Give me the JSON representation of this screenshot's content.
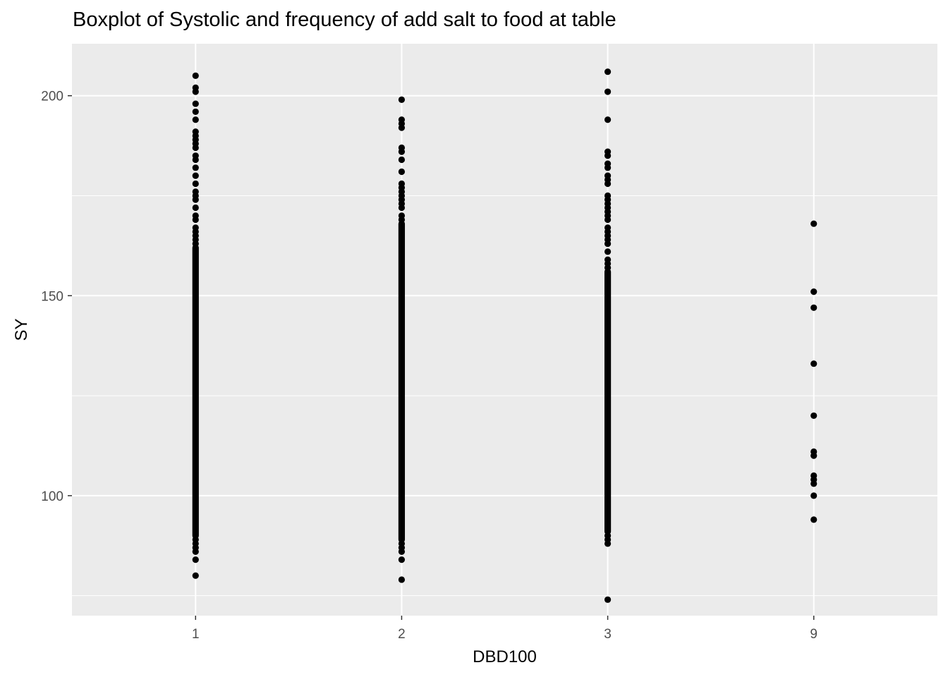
{
  "chart_data": {
    "type": "scatter",
    "title": "Boxplot of Systolic and frequency of add salt to food at table",
    "xlabel": "DBD100",
    "ylabel": "SY",
    "categories": [
      "1",
      "2",
      "3",
      "9"
    ],
    "ylim": [
      70,
      213
    ],
    "yticks": [
      100,
      150,
      200
    ],
    "grid": true,
    "legend": "none",
    "colors": {
      "panel": "#ebebeb",
      "grid": "#ffffff",
      "point": "#000000",
      "tick_text": "#4d4d4d"
    },
    "groups": [
      {
        "category": "1",
        "dense_range": [
          90,
          162
        ],
        "points": [
          205,
          202,
          201,
          198,
          196,
          194,
          191,
          190,
          189,
          188,
          187,
          185,
          184,
          182,
          180,
          178,
          176,
          175,
          174,
          172,
          170,
          169,
          167,
          166,
          165,
          164,
          163,
          89,
          88,
          87,
          86,
          84,
          80
        ]
      },
      {
        "category": "2",
        "dense_range": [
          89,
          168
        ],
        "points": [
          199,
          194,
          193,
          192,
          187,
          186,
          184,
          181,
          178,
          177,
          176,
          175,
          174,
          173,
          172,
          170,
          169,
          88,
          87,
          86,
          84,
          79
        ]
      },
      {
        "category": "3",
        "dense_range": [
          91,
          156
        ],
        "points": [
          206,
          201,
          194,
          186,
          185,
          183,
          182,
          180,
          179,
          178,
          175,
          174,
          173,
          172,
          171,
          170,
          169,
          167,
          166,
          165,
          164,
          163,
          161,
          159,
          158,
          157,
          90,
          89,
          88,
          74
        ]
      },
      {
        "category": "9",
        "dense_range": null,
        "points": [
          168,
          151,
          147,
          133,
          120,
          111,
          110,
          105,
          104,
          103,
          100,
          94
        ]
      }
    ]
  }
}
